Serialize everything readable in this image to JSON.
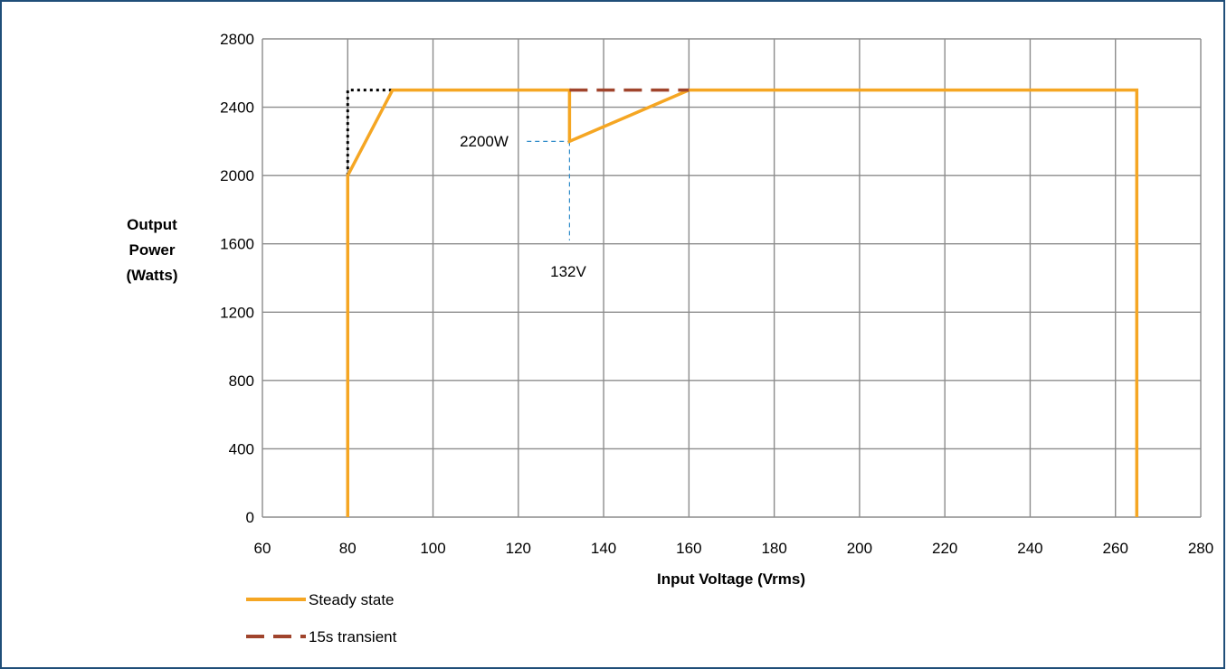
{
  "chart_data": {
    "type": "line",
    "title": "",
    "xlabel": "Input Voltage (Vrms)",
    "ylabel_lines": [
      "Output",
      "Power",
      "(Watts)"
    ],
    "xlim": [
      60,
      280
    ],
    "ylim": [
      0,
      2800
    ],
    "x_ticks": [
      60,
      80,
      100,
      120,
      140,
      160,
      180,
      200,
      220,
      240,
      260,
      280
    ],
    "y_ticks": [
      0,
      400,
      800,
      1200,
      1600,
      2000,
      2400,
      2800
    ],
    "grid": true,
    "legend_position": "bottom-left",
    "series": [
      {
        "name": "Steady state",
        "color": "#f5a623",
        "style": "solid",
        "points": [
          [
            80,
            0
          ],
          [
            80,
            2000
          ],
          [
            90.5,
            2500
          ],
          [
            132,
            2500
          ],
          [
            132,
            2200
          ],
          [
            160,
            2500
          ],
          [
            265,
            2500
          ],
          [
            265,
            0
          ]
        ]
      },
      {
        "name": "15s transient",
        "color": "#a0442c",
        "style": "dashed",
        "points": [
          [
            132,
            2500
          ],
          [
            160,
            2500
          ]
        ]
      }
    ],
    "extra_lines": [
      {
        "id": "black-dotted-corner",
        "color": "#000000",
        "style": "dotted",
        "points": [
          [
            80,
            2000
          ],
          [
            80,
            2500
          ],
          [
            90.5,
            2500
          ]
        ]
      },
      {
        "id": "blue-guide-horizontal",
        "color": "#2e8bc9",
        "style": "dashed",
        "points": [
          [
            122,
            2200
          ],
          [
            132,
            2200
          ]
        ]
      },
      {
        "id": "blue-guide-vertical",
        "color": "#2e8bc9",
        "style": "dashed",
        "points": [
          [
            132,
            2200
          ],
          [
            132,
            1620
          ]
        ]
      }
    ],
    "annotations": [
      {
        "id": "annotation-2200w",
        "text": "2200W"
      },
      {
        "id": "annotation-132v",
        "text": "132V"
      }
    ]
  }
}
